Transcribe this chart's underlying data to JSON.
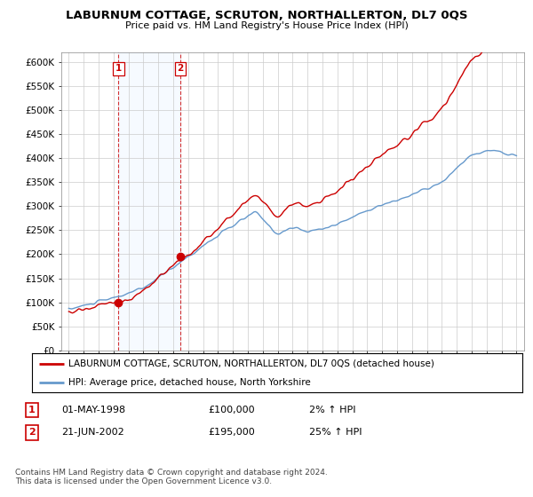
{
  "title": "LABURNUM COTTAGE, SCRUTON, NORTHALLERTON, DL7 0QS",
  "subtitle": "Price paid vs. HM Land Registry's House Price Index (HPI)",
  "ylabel_ticks": [
    "£0",
    "£50K",
    "£100K",
    "£150K",
    "£200K",
    "£250K",
    "£300K",
    "£350K",
    "£400K",
    "£450K",
    "£500K",
    "£550K",
    "£600K"
  ],
  "ylim": [
    0,
    620000
  ],
  "xlim_start": 1994.5,
  "xlim_end": 2025.5,
  "sale1_date": 1998.33,
  "sale1_price": 100000,
  "sale1_label": "1",
  "sale2_date": 2002.47,
  "sale2_price": 195000,
  "sale2_label": "2",
  "legend_line1": "LABURNUM COTTAGE, SCRUTON, NORTHALLERTON, DL7 0QS (detached house)",
  "legend_line2": "HPI: Average price, detached house, North Yorkshire",
  "table_row1": [
    "1",
    "01-MAY-1998",
    "£100,000",
    "2% ↑ HPI"
  ],
  "table_row2": [
    "2",
    "21-JUN-2002",
    "£195,000",
    "25% ↑ HPI"
  ],
  "footnote": "Contains HM Land Registry data © Crown copyright and database right 2024.\nThis data is licensed under the Open Government Licence v3.0.",
  "hpi_color": "#6699cc",
  "price_color": "#cc0000",
  "sale_marker_color": "#cc0000",
  "vline_color": "#cc0000",
  "background_color": "#ffffff",
  "plot_bg_color": "#ffffff",
  "grid_color": "#cccccc",
  "span_color": "#ddeeff"
}
